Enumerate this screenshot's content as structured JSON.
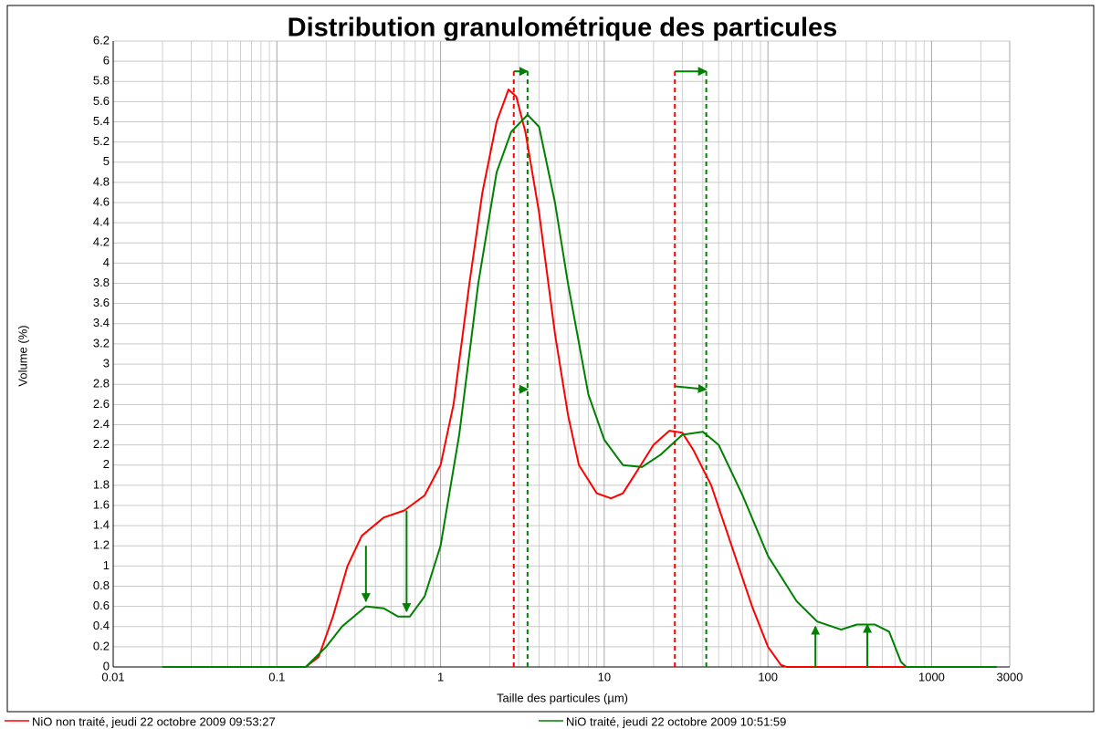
{
  "chart_data": {
    "type": "line",
    "title": "Distribution granulométrique des particules",
    "x_label": "Taille des particules (µm)",
    "y_label": "Volume (%)",
    "x_log": true,
    "grid": true,
    "legend_position": "bottom",
    "xlim": [
      0.01,
      3000
    ],
    "xticks": [
      0.01,
      0.1,
      1,
      10,
      100,
      1000,
      3000
    ],
    "ylim": [
      0,
      6.2
    ],
    "yticks": [
      0,
      0.2,
      0.4,
      0.6,
      0.8,
      1,
      1.2,
      1.4,
      1.6,
      1.8,
      2,
      2.2,
      2.4,
      2.6,
      2.8,
      3,
      3.2,
      3.4,
      3.6,
      3.8,
      4,
      4.2,
      4.4,
      4.6,
      4.8,
      5,
      5.2,
      5.4,
      5.6,
      5.8,
      6,
      6.2
    ],
    "series": [
      {
        "name": "NiO non traité, jeudi 22 octobre 2009 09:53:27",
        "color": "#ff0000",
        "x": [
          0.02,
          0.15,
          0.18,
          0.22,
          0.27,
          0.33,
          0.45,
          0.6,
          0.8,
          1.0,
          1.2,
          1.5,
          1.8,
          2.2,
          2.6,
          2.9,
          3.3,
          4,
          5,
          6,
          7,
          9,
          11,
          13,
          16,
          20,
          25,
          30,
          35,
          45,
          60,
          80,
          100,
          120,
          130,
          2000
        ],
        "values": [
          0,
          0,
          0.1,
          0.5,
          1.0,
          1.3,
          1.48,
          1.55,
          1.7,
          2.0,
          2.6,
          3.8,
          4.7,
          5.4,
          5.72,
          5.65,
          5.3,
          4.5,
          3.3,
          2.5,
          2.0,
          1.72,
          1.67,
          1.72,
          1.95,
          2.2,
          2.34,
          2.32,
          2.15,
          1.8,
          1.2,
          0.6,
          0.2,
          0.02,
          0,
          0
        ]
      },
      {
        "name": "NiO traité, jeudi 22 octobre 2009 10:51:59",
        "color": "#008000",
        "x": [
          0.02,
          0.15,
          0.2,
          0.25,
          0.35,
          0.45,
          0.55,
          0.65,
          0.8,
          1.0,
          1.3,
          1.7,
          2.2,
          2.7,
          3.4,
          4,
          5,
          6,
          8,
          10,
          13,
          17,
          22,
          30,
          40,
          50,
          70,
          100,
          150,
          200,
          280,
          350,
          450,
          550,
          650,
          700,
          2500
        ],
        "values": [
          0,
          0,
          0.2,
          0.4,
          0.6,
          0.58,
          0.5,
          0.5,
          0.7,
          1.2,
          2.3,
          3.8,
          4.9,
          5.3,
          5.47,
          5.35,
          4.6,
          3.8,
          2.7,
          2.25,
          2.0,
          1.98,
          2.1,
          2.3,
          2.33,
          2.2,
          1.7,
          1.1,
          0.65,
          0.45,
          0.37,
          0.42,
          0.42,
          0.35,
          0.05,
          0,
          0
        ]
      }
    ],
    "reference_lines": [
      {
        "x": 2.8,
        "ymax": 5.9,
        "color": "#ff0000"
      },
      {
        "x": 27,
        "ymax": 5.9,
        "color": "#ff0000"
      },
      {
        "x": 3.4,
        "ymax": 5.9,
        "color": "#008000"
      },
      {
        "x": 42,
        "ymax": 5.9,
        "color": "#008000"
      }
    ],
    "arrows": [
      {
        "x1": 2.8,
        "y1": 5.9,
        "x2": 3.4,
        "y2": 5.9
      },
      {
        "x1": 27,
        "y1": 5.9,
        "x2": 42,
        "y2": 5.9
      },
      {
        "x1": 3.0,
        "y1": 2.75,
        "x2": 3.4,
        "y2": 2.75
      },
      {
        "x1": 27,
        "y1": 2.78,
        "x2": 42,
        "y2": 2.75
      },
      {
        "x1": 0.35,
        "y1": 1.2,
        "x2": 0.35,
        "y2": 0.65
      },
      {
        "x1": 0.62,
        "y1": 1.55,
        "x2": 0.62,
        "y2": 0.55
      },
      {
        "x1": 195,
        "y1": 0,
        "x2": 195,
        "y2": 0.4
      },
      {
        "x1": 405,
        "y1": 0,
        "x2": 405,
        "y2": 0.42
      }
    ],
    "arrow_color": "#008000"
  }
}
